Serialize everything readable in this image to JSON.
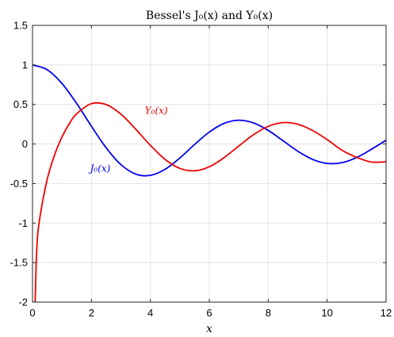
{
  "chart_data": {
    "type": "line",
    "title": "Bessel's J₀(x) and Y₀(x)",
    "xlabel": "x",
    "ylabel": "",
    "xlim": [
      0,
      12
    ],
    "ylim": [
      -2,
      1.5
    ],
    "grid": true,
    "xticks": [
      0,
      2,
      4,
      6,
      8,
      10,
      12
    ],
    "yticks": [
      -2,
      -1.5,
      -1,
      -0.5,
      0,
      0.5,
      1,
      1.5
    ],
    "xtick_labels": [
      "0",
      "2",
      "4",
      "6",
      "8",
      "10",
      "12"
    ],
    "ytick_labels": [
      "-2",
      "-1.5",
      "-1",
      "-0.5",
      "0",
      "0.5",
      "1",
      "1.5"
    ],
    "series": [
      {
        "name": "J₀(x)",
        "color": "#0000ee",
        "x": [
          0,
          0.5,
          1,
          1.5,
          2,
          2.5,
          3,
          3.5,
          4,
          4.5,
          5,
          5.5,
          6,
          6.5,
          7,
          7.5,
          8,
          8.5,
          9,
          9.5,
          10,
          10.5,
          11,
          11.5,
          12
        ],
        "values": [
          1.0,
          0.9385,
          0.7652,
          0.5118,
          0.2239,
          -0.0484,
          -0.2601,
          -0.3801,
          -0.3971,
          -0.3205,
          -0.1776,
          -0.0068,
          0.1506,
          0.2601,
          0.3001,
          0.2663,
          0.1717,
          0.0419,
          -0.0903,
          -0.1939,
          -0.2459,
          -0.2366,
          -0.1712,
          -0.0677,
          0.0477
        ]
      },
      {
        "name": "Y₀(x)",
        "color": "#ee0000",
        "x": [
          0.089,
          0.15,
          0.25,
          0.5,
          0.75,
          1,
          1.25,
          1.5,
          2,
          2.5,
          3,
          3.5,
          4,
          4.5,
          5,
          5.5,
          6,
          6.5,
          7,
          7.5,
          8,
          8.5,
          9,
          9.5,
          10,
          10.5,
          11,
          11.5,
          12
        ],
        "values": [
          -2.0,
          -1.29,
          -0.9316,
          -0.4445,
          -0.1375,
          0.0883,
          0.2582,
          0.3824,
          0.5104,
          0.498,
          0.3769,
          0.189,
          -0.0169,
          -0.1947,
          -0.3085,
          -0.3395,
          -0.2882,
          -0.1732,
          -0.026,
          0.1173,
          0.2235,
          0.2702,
          0.2499,
          0.1712,
          0.0557,
          -0.0782,
          -0.1688,
          -0.2284,
          -0.2252
        ]
      }
    ],
    "annotations": [
      {
        "text": "Y₀(x)",
        "x": 4.2,
        "y": 0.38,
        "color": "#ee0000"
      },
      {
        "text": "J₀(x)",
        "x": 2.3,
        "y": -0.35,
        "color": "#0000ee"
      }
    ],
    "colors": {
      "grid": "#e3e3e3",
      "axis": "#262626"
    }
  }
}
